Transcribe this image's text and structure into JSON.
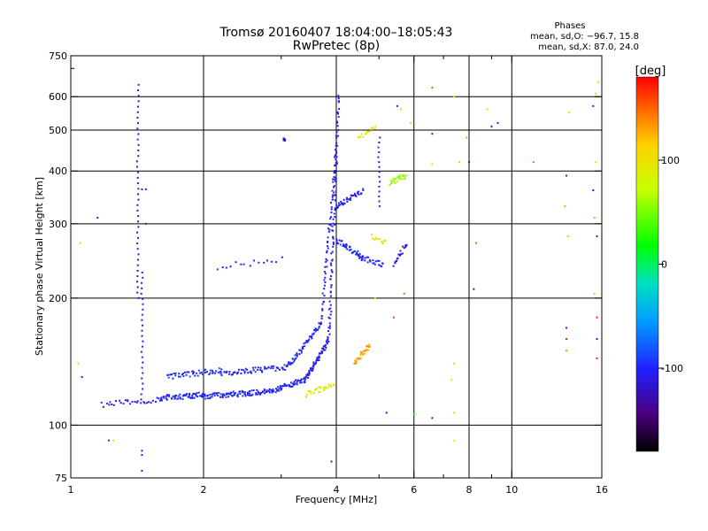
{
  "chart_data": {
    "type": "scatter",
    "title": "Tromsø 20160407 18:04:00–18:05:43",
    "subtitle": "RwPretec (8p)",
    "xlabel": "Frequency [MHz]",
    "ylabel": "Stationary phase Virtual Height [km]",
    "x_scale": "log2",
    "y_scale": "log",
    "xlim": [
      1,
      16
    ],
    "ylim": [
      75,
      750
    ],
    "x_ticks": [
      1,
      2,
      4,
      6,
      8,
      10,
      16
    ],
    "x_tick_labels": [
      "1",
      "2",
      "4",
      "6",
      "8",
      "10",
      "16"
    ],
    "x_minor_ticks": [
      3,
      5,
      7,
      9
    ],
    "y_ticks": [
      75,
      100,
      200,
      300,
      400,
      500,
      600,
      750
    ],
    "y_tick_labels": [
      "75",
      "100",
      "200",
      "300",
      "400",
      "500",
      "600",
      "750"
    ],
    "y_minor_ticks": [
      700
    ],
    "grid": true,
    "legend": {
      "title": "Phases",
      "lines": [
        "mean, sd,O: −96.7, 15.8",
        "mean, sd,X:  87.0, 24.0"
      ],
      "position": "top-right"
    },
    "colorbar": {
      "label": "[deg]",
      "range": [
        -180,
        180
      ],
      "ticks": [
        100,
        0,
        -100
      ],
      "tick_labels": [
        "100",
        "0",
        "-100"
      ]
    },
    "segments": [
      {
        "f0": 1.18,
        "f1": 1.6,
        "h0": 112,
        "h1": 115,
        "n": 30,
        "ph": -105
      },
      {
        "f0": 1.6,
        "f1": 2.0,
        "h0": 116,
        "h1": 118,
        "n": 60,
        "ph": -100
      },
      {
        "f0": 2.0,
        "f1": 2.8,
        "h0": 117,
        "h1": 120,
        "n": 90,
        "ph": -100
      },
      {
        "f0": 2.8,
        "f1": 3.4,
        "h0": 120,
        "h1": 128,
        "n": 60,
        "ph": -100
      },
      {
        "f0": 3.4,
        "f1": 3.85,
        "h0": 128,
        "h1": 160,
        "n": 60,
        "ph": -105
      },
      {
        "f0": 3.85,
        "f1": 4.05,
        "h0": 160,
        "h1": 600,
        "n": 90,
        "ph": -105
      },
      {
        "f0": 1.65,
        "f1": 2.2,
        "h0": 130,
        "h1": 135,
        "n": 50,
        "ph": -95
      },
      {
        "f0": 2.2,
        "f1": 3.1,
        "h0": 133,
        "h1": 137,
        "n": 60,
        "ph": -100
      },
      {
        "f0": 3.1,
        "f1": 3.7,
        "h0": 137,
        "h1": 175,
        "n": 60,
        "ph": -100
      },
      {
        "f0": 3.7,
        "f1": 4.0,
        "h0": 175,
        "h1": 450,
        "n": 60,
        "ph": -105
      },
      {
        "f0": 4.0,
        "f1": 4.6,
        "h0": 330,
        "h1": 360,
        "n": 40,
        "ph": -100
      },
      {
        "f0": 4.0,
        "f1": 4.6,
        "h0": 275,
        "h1": 250,
        "n": 40,
        "ph": -100
      },
      {
        "f0": 4.5,
        "f1": 5.1,
        "h0": 250,
        "h1": 240,
        "n": 25,
        "ph": -100
      },
      {
        "f0": 5.4,
        "f1": 5.8,
        "h0": 240,
        "h1": 270,
        "n": 20,
        "ph": -110
      },
      {
        "f0": 2.15,
        "f1": 3.0,
        "h0": 237,
        "h1": 247,
        "n": 15,
        "ph": -100
      },
      {
        "f0": 3.4,
        "f1": 3.95,
        "h0": 118,
        "h1": 125,
        "n": 30,
        "ph": 90
      },
      {
        "f0": 4.4,
        "f1": 4.75,
        "h0": 140,
        "h1": 155,
        "n": 30,
        "ph": 130
      },
      {
        "f0": 5.3,
        "f1": 5.75,
        "h0": 375,
        "h1": 390,
        "n": 25,
        "ph": 60
      },
      {
        "f0": 4.5,
        "f1": 4.9,
        "h0": 480,
        "h1": 510,
        "n": 15,
        "ph": 90
      },
      {
        "f0": 4.8,
        "f1": 5.2,
        "h0": 280,
        "h1": 270,
        "n": 12,
        "ph": 95
      }
    ],
    "vertical_streaks": [
      {
        "f": 1.42,
        "h0": 200,
        "h1": 640,
        "n": 40,
        "ph": -110
      },
      {
        "f": 1.45,
        "h0": 115,
        "h1": 230,
        "n": 25,
        "ph": -105
      },
      {
        "f": 3.05,
        "h0": 472,
        "h1": 478,
        "n": 6,
        "ph": -120
      },
      {
        "f": 5.0,
        "h0": 330,
        "h1": 480,
        "n": 15,
        "ph": -100
      }
    ],
    "scattered_points": [
      [
        1.05,
        270,
        60
      ],
      [
        1.15,
        310,
        -100
      ],
      [
        1.04,
        140,
        110
      ],
      [
        1.06,
        130,
        -110
      ],
      [
        1.22,
        92,
        -100
      ],
      [
        1.25,
        92,
        110
      ],
      [
        1.45,
        87,
        -100
      ],
      [
        1.45,
        85,
        -110
      ],
      [
        1.45,
        78,
        -110
      ],
      [
        1.45,
        362,
        -120
      ],
      [
        1.48,
        362,
        -110
      ],
      [
        1.48,
        300,
        -100
      ],
      [
        3.9,
        82,
        -100
      ],
      [
        5.2,
        107,
        -110
      ],
      [
        6.0,
        106,
        20
      ],
      [
        6.6,
        104,
        -100
      ],
      [
        6.6,
        490,
        -100
      ],
      [
        6.6,
        415,
        100
      ],
      [
        6.6,
        630,
        150
      ],
      [
        7.4,
        600,
        60
      ],
      [
        7.6,
        420,
        110
      ],
      [
        7.4,
        107,
        60
      ],
      [
        7.4,
        92,
        90
      ],
      [
        7.3,
        128,
        60
      ],
      [
        7.4,
        140,
        60
      ],
      [
        7.9,
        480,
        130
      ],
      [
        8.0,
        420,
        -100
      ],
      [
        8.3,
        270,
        150
      ],
      [
        8.2,
        210,
        -110
      ],
      [
        8.8,
        560,
        100
      ],
      [
        9.0,
        510,
        -100
      ],
      [
        9.3,
        520,
        -110
      ],
      [
        11.2,
        420,
        150
      ],
      [
        13.3,
        390,
        -100
      ],
      [
        13.2,
        330,
        40
      ],
      [
        13.4,
        280,
        50
      ],
      [
        13.5,
        550,
        110
      ],
      [
        13.3,
        170,
        -110
      ],
      [
        13.3,
        160,
        170
      ],
      [
        13.3,
        150,
        30
      ],
      [
        15.3,
        570,
        -100
      ],
      [
        15.3,
        360,
        -120
      ],
      [
        15.5,
        420,
        80
      ],
      [
        15.6,
        280,
        -110
      ],
      [
        15.4,
        310,
        40
      ],
      [
        15.4,
        205,
        120
      ],
      [
        15.7,
        650,
        100
      ],
      [
        15.5,
        610,
        110
      ],
      [
        15.6,
        600,
        150
      ],
      [
        15.6,
        180,
        170
      ],
      [
        15.6,
        160,
        -120
      ],
      [
        15.6,
        144,
        170
      ],
      [
        5.7,
        205,
        150
      ],
      [
        5.4,
        180,
        160
      ],
      [
        4.9,
        200,
        110
      ],
      [
        5.5,
        570,
        -100
      ],
      [
        5.6,
        560,
        120
      ],
      [
        5.9,
        520,
        110
      ]
    ]
  }
}
